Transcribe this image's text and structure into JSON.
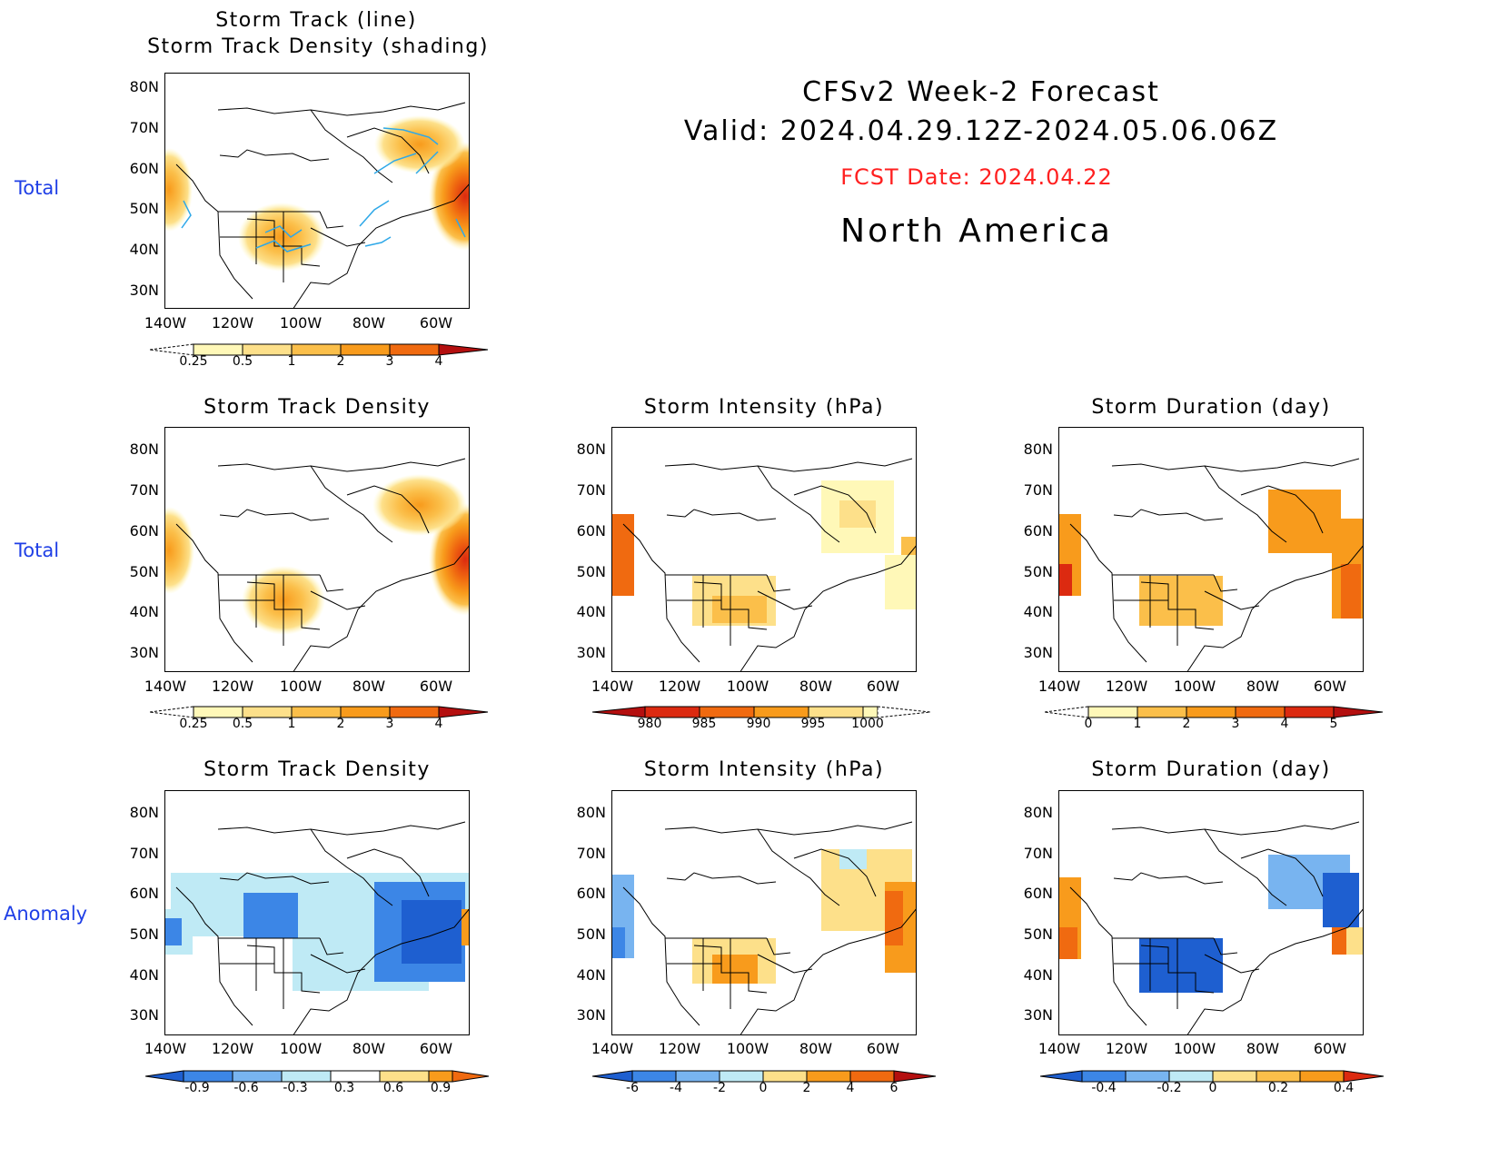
{
  "header": {
    "title": "CFSv2 Week-2 Forecast",
    "valid": "Valid: 2024.04.29.12Z-2024.05.06.06Z",
    "fcst_date": "FCST Date: 2024.04.22",
    "region": "North America",
    "fcst_color": "#ff2020"
  },
  "row_labels": [
    "Total",
    "Total",
    "Anomaly"
  ],
  "axes": {
    "lat_labels": [
      "80N",
      "70N",
      "60N",
      "50N",
      "40N",
      "30N"
    ],
    "lon_labels": [
      "140W",
      "120W",
      "100W",
      "80W",
      "60W"
    ]
  },
  "panels": {
    "p1": {
      "title_line1": "Storm Track (line)",
      "title_line2": "Storm Track Density (shading)",
      "colorbar": [
        "0.25",
        "0.5",
        "1",
        "2",
        "3",
        "4"
      ]
    },
    "p2": {
      "title": "Storm Track Density",
      "colorbar": [
        "0.25",
        "0.5",
        "1",
        "2",
        "3",
        "4"
      ]
    },
    "p3": {
      "title": "Storm Intensity (hPa)",
      "colorbar": [
        "980",
        "985",
        "990",
        "995",
        "1000"
      ]
    },
    "p4": {
      "title": "Storm Duration (day)",
      "colorbar": [
        "0",
        "1",
        "2",
        "3",
        "4",
        "5"
      ]
    },
    "p5": {
      "title": "Storm Track Density",
      "colorbar": [
        "-0.9",
        "-0.6",
        "-0.3",
        "0.3",
        "0.6",
        "0.9"
      ]
    },
    "p6": {
      "title": "Storm Intensity (hPa)",
      "colorbar": [
        "-6",
        "-4",
        "-2",
        "0",
        "2",
        "4",
        "6"
      ]
    },
    "p7": {
      "title": "Storm Duration (day)",
      "colorbar": [
        "-0.4",
        "-0.2",
        "0",
        "0.2",
        "0.4"
      ]
    }
  },
  "colors": {
    "warm_scale": [
      "#fff8b8",
      "#fde08a",
      "#fbbf4a",
      "#f89b1c",
      "#f06a10",
      "#dc2a10",
      "#b40f0f"
    ],
    "cool_scale": [
      "#1e5fd0",
      "#3c86e6",
      "#78b4f0",
      "#bfeaf5"
    ],
    "track_line": "#2ea8e8",
    "row_label": "#1f3fe6"
  }
}
